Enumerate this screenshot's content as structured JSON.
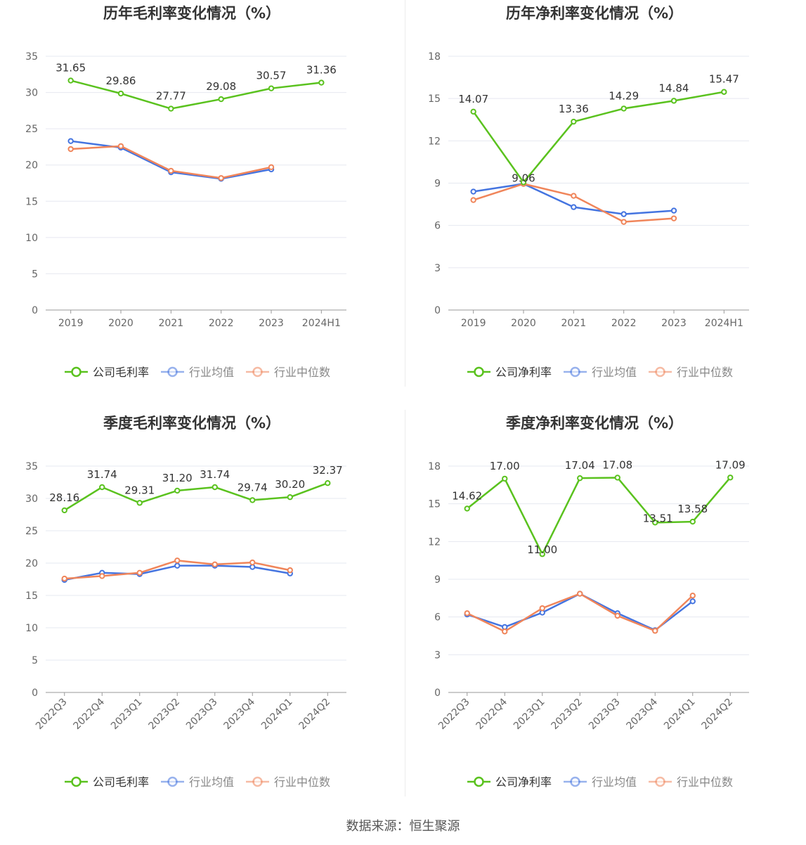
{
  "footer": {
    "source_label": "数据来源：恒生聚源"
  },
  "colors": {
    "company": "#5ac21e",
    "avg": "#4474e0",
    "median": "#f0855a",
    "grid": "#e6e8f0",
    "axis": "#999999",
    "text": "#333333"
  },
  "chart_data": [
    {
      "type": "line",
      "title": "历年毛利率变化情况（%）",
      "categories": [
        "2019",
        "2020",
        "2021",
        "2022",
        "2023",
        "2024H1"
      ],
      "ylim": [
        0,
        35
      ],
      "yticks": [
        0,
        5,
        10,
        15,
        20,
        25,
        30,
        35
      ],
      "grid": true,
      "legend_position": "bottom",
      "series": [
        {
          "name": "公司毛利率",
          "color_key": "company",
          "labels": true,
          "values": [
            31.65,
            29.86,
            27.77,
            29.08,
            30.57,
            31.36
          ]
        },
        {
          "name": "行业均值",
          "color_key": "avg",
          "labels": false,
          "values": [
            23.3,
            22.4,
            19.0,
            18.1,
            19.4,
            null
          ]
        },
        {
          "name": "行业中位数",
          "color_key": "median",
          "labels": false,
          "values": [
            22.2,
            22.6,
            19.2,
            18.2,
            19.7,
            null
          ]
        }
      ],
      "data_labels": [
        "31.65",
        "29.86",
        "27.77",
        "29.08",
        "30.57",
        "31.36"
      ]
    },
    {
      "type": "line",
      "title": "历年净利率变化情况（%）",
      "categories": [
        "2019",
        "2020",
        "2021",
        "2022",
        "2023",
        "2024H1"
      ],
      "ylim": [
        0,
        18
      ],
      "yticks": [
        0,
        3,
        6,
        9,
        12,
        15,
        18
      ],
      "grid": true,
      "legend_position": "bottom",
      "series": [
        {
          "name": "公司净利率",
          "color_key": "company",
          "labels": true,
          "values": [
            14.07,
            9.06,
            13.36,
            14.29,
            14.84,
            15.47
          ]
        },
        {
          "name": "行业均值",
          "color_key": "avg",
          "labels": false,
          "values": [
            8.4,
            8.95,
            7.3,
            6.8,
            7.05,
            null
          ]
        },
        {
          "name": "行业中位数",
          "color_key": "median",
          "labels": false,
          "values": [
            7.8,
            8.95,
            8.1,
            6.25,
            6.5,
            null
          ]
        }
      ],
      "data_labels": [
        "14.07",
        "9.06",
        "13.36",
        "14.29",
        "14.84",
        "15.47"
      ]
    },
    {
      "type": "line",
      "title": "季度毛利率变化情况（%）",
      "categories": [
        "2022Q3",
        "2022Q4",
        "2023Q1",
        "2023Q2",
        "2023Q3",
        "2023Q4",
        "2024Q1",
        "2024Q2"
      ],
      "ylim": [
        0,
        35
      ],
      "yticks": [
        0,
        5,
        10,
        15,
        20,
        25,
        30,
        35
      ],
      "grid": true,
      "legend_position": "bottom",
      "series": [
        {
          "name": "公司毛利率",
          "color_key": "company",
          "labels": true,
          "values": [
            28.16,
            31.74,
            29.31,
            31.2,
            31.74,
            29.74,
            30.2,
            32.37
          ]
        },
        {
          "name": "行业均值",
          "color_key": "avg",
          "labels": false,
          "values": [
            17.4,
            18.5,
            18.3,
            19.6,
            19.6,
            19.4,
            18.4,
            null
          ]
        },
        {
          "name": "行业中位数",
          "color_key": "median",
          "labels": false,
          "values": [
            17.6,
            18.0,
            18.5,
            20.4,
            19.8,
            20.1,
            18.9,
            null
          ]
        }
      ],
      "data_labels": [
        "28.16",
        "31.74",
        "29.31",
        "31.20",
        "31.74",
        "29.74",
        "30.20",
        "32.37"
      ]
    },
    {
      "type": "line",
      "title": "季度净利率变化情况（%）",
      "categories": [
        "2022Q3",
        "2022Q4",
        "2023Q1",
        "2023Q2",
        "2023Q3",
        "2023Q4",
        "2024Q1",
        "2024Q2"
      ],
      "ylim": [
        0,
        18
      ],
      "yticks": [
        0,
        3,
        6,
        9,
        12,
        15,
        18
      ],
      "grid": true,
      "legend_position": "bottom",
      "series": [
        {
          "name": "公司净利率",
          "color_key": "company",
          "labels": true,
          "values": [
            14.62,
            17.0,
            11.0,
            17.04,
            17.08,
            13.51,
            13.58,
            17.09
          ]
        },
        {
          "name": "行业均值",
          "color_key": "avg",
          "labels": false,
          "values": [
            6.2,
            5.2,
            6.35,
            7.85,
            6.3,
            4.95,
            7.25,
            null
          ]
        },
        {
          "name": "行业中位数",
          "color_key": "median",
          "labels": false,
          "values": [
            6.3,
            4.85,
            6.7,
            7.85,
            6.1,
            4.9,
            7.7,
            null
          ]
        }
      ],
      "data_labels": [
        "14.62",
        "17.00",
        "11.00",
        "17.04",
        "17.08",
        "13.51",
        "13.58",
        "17.09"
      ]
    }
  ]
}
